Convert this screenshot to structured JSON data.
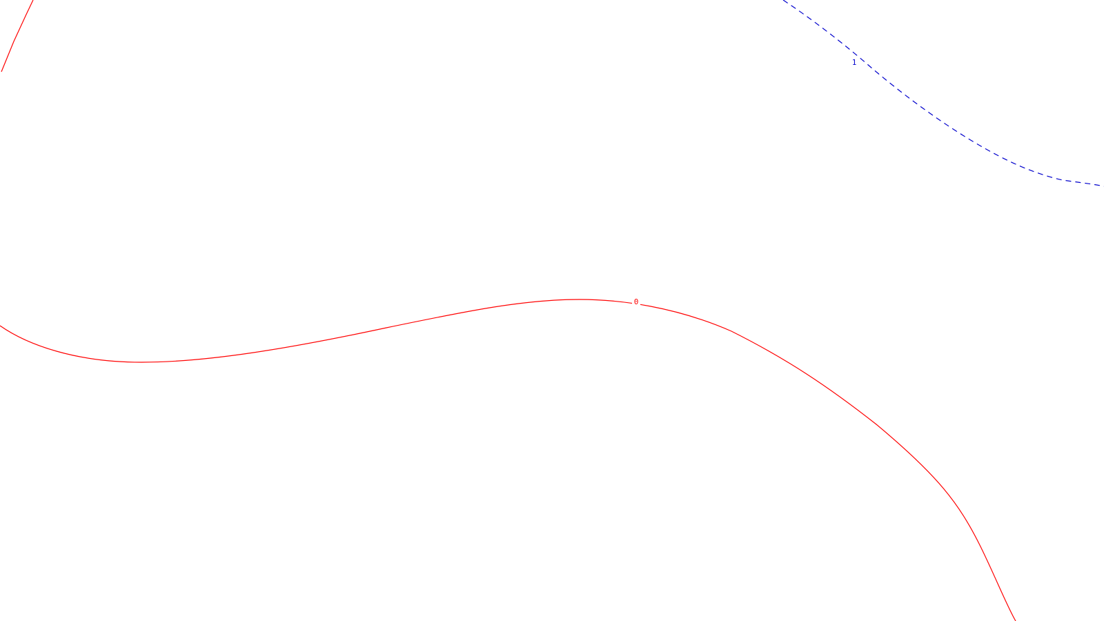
{
  "contours": [
    {
      "label": "0",
      "color": "#ff0000",
      "style": "solid"
    },
    {
      "label": "1",
      "color": "#0000cc",
      "style": "dashed"
    }
  ]
}
